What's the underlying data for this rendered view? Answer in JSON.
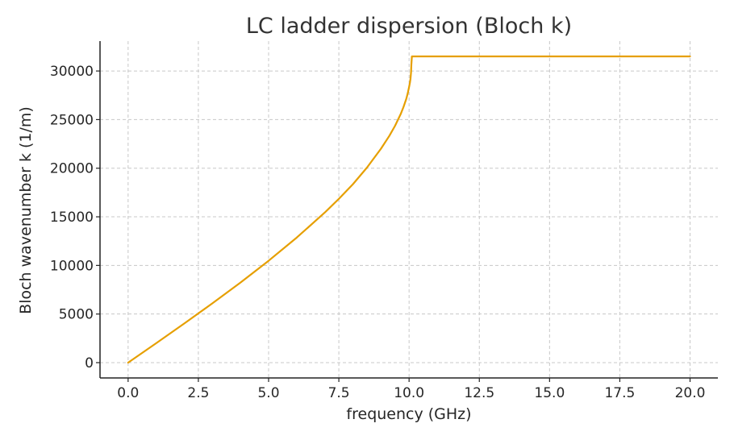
{
  "chart_data": {
    "type": "line",
    "title": "LC ladder dispersion (Bloch k)",
    "xlabel": "frequency (GHz)",
    "ylabel": "Bloch wavenumber k (1/m)",
    "xlim": [
      -1.0,
      20.99
    ],
    "ylim": [
      -1575,
      33075
    ],
    "x_ticks": [
      0.0,
      2.5,
      5.0,
      7.5,
      10.0,
      12.5,
      15.0,
      17.5,
      20.0
    ],
    "x_tick_labels": [
      "0.0",
      "2.5",
      "5.0",
      "7.5",
      "10.0",
      "12.5",
      "15.0",
      "17.5",
      "20.0"
    ],
    "y_ticks": [
      0,
      5000,
      10000,
      15000,
      20000,
      25000,
      30000
    ],
    "y_tick_labels": [
      "0",
      "5000",
      "10000",
      "15000",
      "20000",
      "25000",
      "30000"
    ],
    "grid": true,
    "legend": "none",
    "series": [
      {
        "color": "#E69F00",
        "x": [
          0,
          1,
          2,
          3,
          4,
          5,
          6,
          7,
          7.5,
          8,
          8.5,
          9,
          9.3,
          9.5,
          9.7,
          9.8,
          9.9,
          9.95,
          10.0,
          10.03,
          10.05,
          10.07,
          10.08,
          10.1,
          11,
          12,
          13,
          14,
          15,
          16,
          17,
          18,
          19,
          20
        ],
        "y": [
          0,
          2000,
          4030,
          6100,
          8240,
          10480,
          12860,
          15440,
          16850,
          18350,
          20060,
          22010,
          23340,
          24360,
          25560,
          26290,
          27130,
          27680,
          28350,
          28800,
          29200,
          29850,
          30600,
          31500,
          31500,
          31500,
          31500,
          31500,
          31500,
          31500,
          31500,
          31500,
          31500,
          31500
        ]
      }
    ]
  }
}
